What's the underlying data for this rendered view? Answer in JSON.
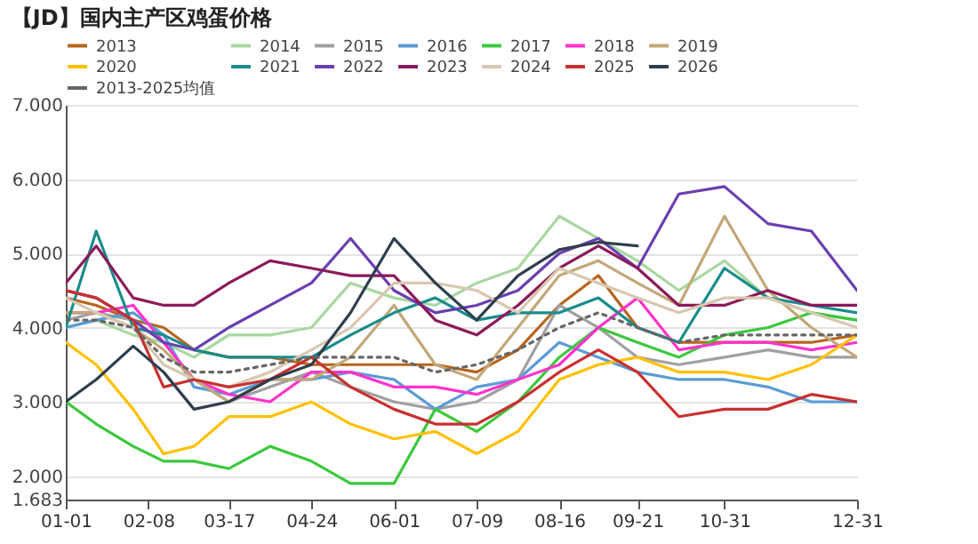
{
  "chart_data": {
    "type": "line",
    "title": "【JD】国内主产区鸡蛋价格",
    "x": [
      "--01-01",
      "--01-15",
      "--02-01",
      "--02-15",
      "--03-01",
      "--03-17",
      "--04-05",
      "--04-24",
      "--05-12",
      "--06-01",
      "--06-20",
      "--07-09",
      "--07-28",
      "--08-16",
      "--09-03",
      "--09-21",
      "--10-10",
      "--10-31",
      "--11-20",
      "--12-10",
      "--12-31"
    ],
    "series": [
      {
        "name": "2013",
        "color": "#b8651e",
        "values": [
          4.4,
          4.3,
          4.1,
          4.0,
          3.7,
          3.6,
          3.6,
          3.5,
          3.5,
          3.5,
          3.5,
          3.4,
          3.7,
          4.3,
          4.7,
          4.0,
          3.8,
          3.8,
          3.8,
          3.8,
          3.9
        ]
      },
      {
        "name": "2014",
        "color": "#a8d8a0",
        "values": [
          4.0,
          4.1,
          3.9,
          3.8,
          3.6,
          3.9,
          3.9,
          4.0,
          4.6,
          4.4,
          4.3,
          4.6,
          4.8,
          5.5,
          5.2,
          4.9,
          4.5,
          4.9,
          4.4,
          4.2,
          4.1
        ]
      },
      {
        "name": "2015",
        "color": "#a0a0a0",
        "values": [
          4.1,
          4.2,
          4.1,
          3.8,
          3.3,
          3.0,
          3.2,
          3.4,
          3.2,
          3.0,
          2.9,
          3.0,
          3.3,
          4.3,
          4.0,
          3.6,
          3.5,
          3.6,
          3.7,
          3.6,
          3.6
        ]
      },
      {
        "name": "2016",
        "color": "#5b9bd5",
        "values": [
          4.0,
          4.1,
          4.2,
          3.9,
          3.2,
          3.1,
          3.3,
          3.3,
          3.4,
          3.3,
          2.9,
          3.2,
          3.3,
          3.8,
          3.6,
          3.4,
          3.3,
          3.3,
          3.2,
          3.0,
          3.0
        ]
      },
      {
        "name": "2017",
        "color": "#3cc83c",
        "values": [
          3.0,
          2.7,
          2.4,
          2.2,
          2.2,
          2.1,
          2.4,
          2.2,
          1.9,
          1.9,
          2.9,
          2.6,
          3.0,
          3.6,
          4.0,
          3.8,
          3.6,
          3.9,
          4.0,
          4.2,
          4.1
        ]
      },
      {
        "name": "2018",
        "color": "#ff33cc",
        "values": [
          4.2,
          4.2,
          4.3,
          3.8,
          3.3,
          3.1,
          3.0,
          3.4,
          3.4,
          3.2,
          3.2,
          3.1,
          3.3,
          3.5,
          4.0,
          4.4,
          3.7,
          3.8,
          3.8,
          3.7,
          3.8
        ]
      },
      {
        "name": "2019",
        "color": "#c2a878",
        "values": [
          4.2,
          4.2,
          4.0,
          3.7,
          3.3,
          3.0,
          3.3,
          3.3,
          3.6,
          4.3,
          3.5,
          3.3,
          4.0,
          4.7,
          4.9,
          4.6,
          4.3,
          5.5,
          4.5,
          4.0,
          3.6
        ]
      },
      {
        "name": "2020",
        "color": "#ffc000",
        "values": [
          3.8,
          3.5,
          2.9,
          2.3,
          2.4,
          2.8,
          2.8,
          3.0,
          2.7,
          2.5,
          2.6,
          2.3,
          2.6,
          3.3,
          3.5,
          3.6,
          3.4,
          3.4,
          3.3,
          3.5,
          3.9
        ]
      },
      {
        "name": "2021",
        "color": "#1a8c8c",
        "values": [
          4.0,
          5.3,
          4.0,
          3.9,
          3.7,
          3.6,
          3.6,
          3.6,
          3.9,
          4.2,
          4.4,
          4.1,
          4.2,
          4.2,
          4.4,
          4.0,
          3.8,
          4.8,
          4.4,
          4.3,
          4.2
        ]
      },
      {
        "name": "2022",
        "color": "#6a3fb0",
        "values": [
          4.5,
          4.4,
          4.1,
          3.8,
          3.7,
          4.0,
          4.3,
          4.6,
          5.2,
          4.5,
          4.2,
          4.3,
          4.5,
          5.0,
          5.2,
          4.8,
          5.8,
          5.9,
          5.4,
          5.3,
          4.5
        ]
      },
      {
        "name": "2023",
        "color": "#8b1a5a",
        "values": [
          4.6,
          5.1,
          4.4,
          4.3,
          4.3,
          4.6,
          4.9,
          4.8,
          4.7,
          4.7,
          4.1,
          3.9,
          4.3,
          4.8,
          5.1,
          4.8,
          4.3,
          4.3,
          4.5,
          4.3,
          4.3
        ]
      },
      {
        "name": "2024",
        "color": "#d8c8b0",
        "values": [
          4.4,
          4.2,
          4.0,
          3.5,
          3.3,
          3.2,
          3.4,
          3.7,
          4.0,
          4.6,
          4.6,
          4.5,
          4.2,
          4.8,
          4.6,
          4.4,
          4.2,
          4.4,
          4.4,
          4.2,
          4.0
        ]
      },
      {
        "name": "2025",
        "color": "#c83030",
        "values": [
          4.5,
          4.4,
          4.1,
          3.2,
          3.3,
          3.2,
          3.3,
          3.6,
          3.2,
          2.9,
          2.7,
          2.7,
          3.0,
          3.4,
          3.7,
          3.4,
          2.8,
          2.9,
          2.9,
          3.1,
          3.0
        ]
      },
      {
        "name": "2026",
        "color": "#2f3e4c",
        "x": [
          "--01-01",
          "--01-15",
          "--02-01",
          "--02-15",
          "--03-01",
          "--03-17",
          "--04-05",
          "--04-24",
          "--05-12",
          "--06-01",
          "--06-20",
          "--07-09",
          "--07-28",
          "--08-16",
          "--09-03",
          "--09-21"
        ],
        "values": [
          3.0,
          3.3,
          3.75,
          3.4,
          2.9,
          3.0,
          3.3,
          3.5,
          4.2,
          5.2,
          4.6,
          4.1,
          4.7,
          5.05,
          5.15,
          5.1
        ]
      },
      {
        "name": "2013-2025均值",
        "color": "#666666",
        "line_style": "dotted",
        "values": [
          4.1,
          4.1,
          4.0,
          3.6,
          3.4,
          3.4,
          3.5,
          3.6,
          3.6,
          3.6,
          3.4,
          3.5,
          3.7,
          4.0,
          4.2,
          4.0,
          3.8,
          3.9,
          3.9,
          3.9,
          3.9
        ]
      }
    ],
    "ylim": [
      1.683,
      7
    ],
    "yticks": [
      {
        "value": 1.683,
        "label": "1.683"
      },
      {
        "value": 2,
        "label": "2.000"
      },
      {
        "value": 3,
        "label": "3.000"
      },
      {
        "value": 4,
        "label": "4.000"
      },
      {
        "value": 5,
        "label": "5.000"
      },
      {
        "value": 6,
        "label": "6.000"
      },
      {
        "value": 7,
        "label": "7.000"
      }
    ],
    "xticks": [
      {
        "value": "--01-01",
        "label": "01-01"
      },
      {
        "value": "--02-08",
        "label": "02-08"
      },
      {
        "value": "--03-17",
        "label": "03-17"
      },
      {
        "value": "--04-24",
        "label": "04-24"
      },
      {
        "value": "--06-01",
        "label": "06-01"
      },
      {
        "value": "--07-09",
        "label": "07-09"
      },
      {
        "value": "--08-16",
        "label": "08-16"
      },
      {
        "value": "--09-21",
        "label": "09-21"
      },
      {
        "value": "--10-31",
        "label": "10-31"
      },
      {
        "value": "--12-31",
        "label": "12-31"
      }
    ],
    "xlim": [
      "--01-01",
      "--12-31"
    ],
    "grid": "y",
    "legend": "top"
  }
}
